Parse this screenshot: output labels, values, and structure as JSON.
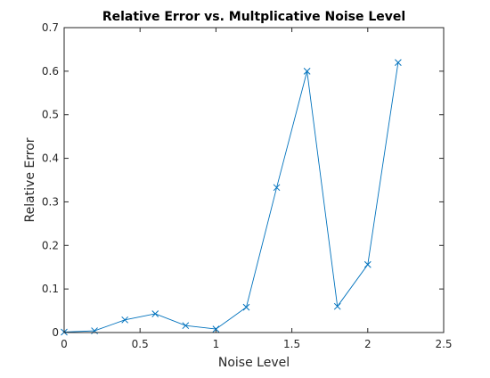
{
  "chart_data": {
    "type": "line",
    "title": "Relative Error vs. Multplicative Noise Level",
    "xlabel": "Noise Level",
    "ylabel": "Relative Error",
    "xlim": [
      0,
      2.5
    ],
    "ylim": [
      0,
      0.7
    ],
    "xticks": [
      "0",
      "0.5",
      "1",
      "1.5",
      "2",
      "2.5"
    ],
    "yticks": [
      "0",
      "0.1",
      "0.2",
      "0.3",
      "0.4",
      "0.5",
      "0.6",
      "0.7"
    ],
    "grid": false,
    "series": [
      {
        "color": "#0072BD",
        "marker": "x",
        "x": [
          0,
          0.2,
          0.4,
          0.6,
          0.8,
          1.0,
          1.2,
          1.4,
          1.6,
          1.8,
          2.0,
          2.2
        ],
        "y": [
          0.001,
          0.004,
          0.029,
          0.043,
          0.016,
          0.008,
          0.058,
          0.333,
          0.6,
          0.06,
          0.156,
          0.62
        ]
      }
    ]
  }
}
